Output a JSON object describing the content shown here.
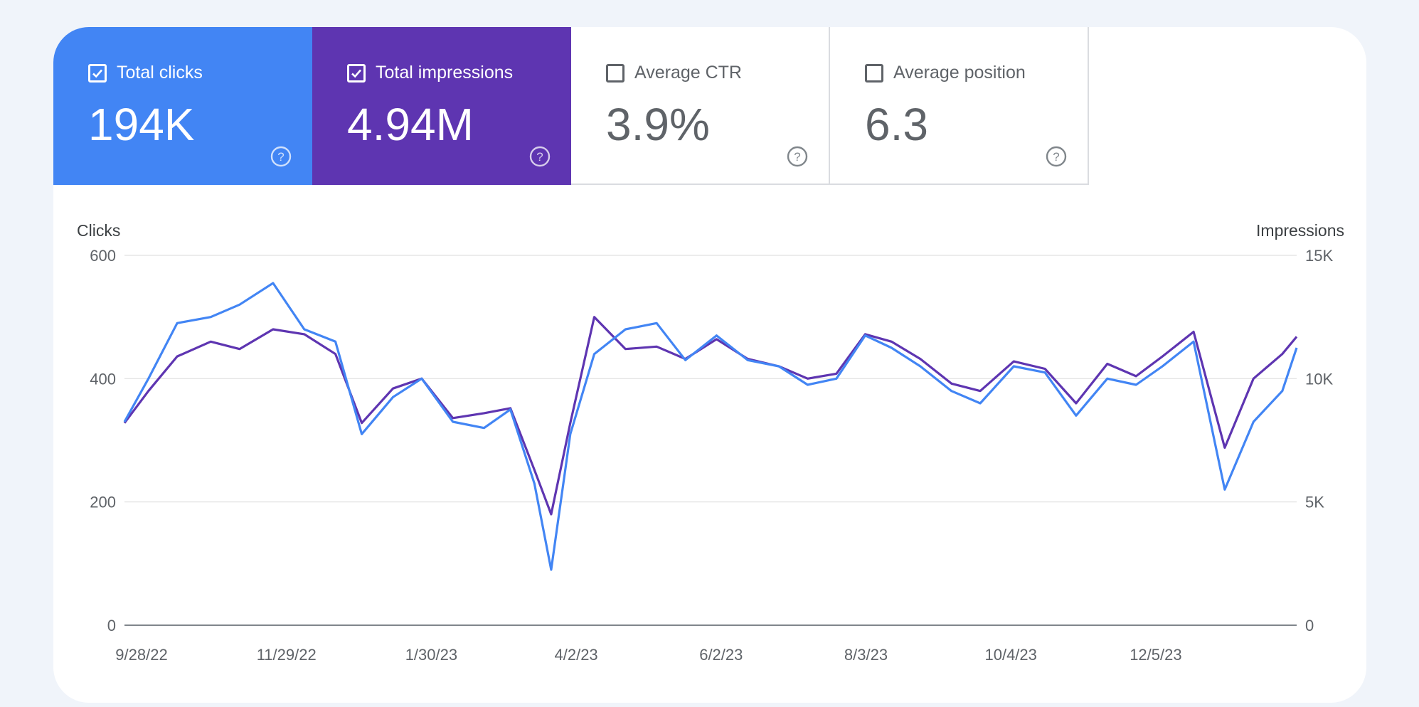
{
  "metrics": [
    {
      "label": "Total clicks",
      "value": "194K",
      "checked": true,
      "color": "#4285f4"
    },
    {
      "label": "Total impressions",
      "value": "4.94M",
      "checked": true,
      "color": "#5e35b1"
    },
    {
      "label": "Average CTR",
      "value": "3.9%",
      "checked": false,
      "color": "#ffffff"
    },
    {
      "label": "Average position",
      "value": "6.3",
      "checked": false,
      "color": "#ffffff"
    }
  ],
  "icons": {
    "checkbox": "checkbox-icon",
    "help": "help-circle-icon"
  },
  "chart_data": {
    "type": "line",
    "ylabel_left": "Clicks",
    "ylabel_right": "Impressions",
    "left_axis": {
      "min": 0,
      "max": 600,
      "ticks": [
        "0",
        "200",
        "400",
        "600"
      ]
    },
    "right_axis": {
      "min": 0,
      "max": 15000,
      "ticks": [
        "0",
        "5K",
        "10K",
        "15K"
      ]
    },
    "x_ticks": [
      "9/28/22",
      "11/29/22",
      "1/30/23",
      "4/2/23",
      "6/2/23",
      "8/3/23",
      "10/4/23",
      "12/5/23"
    ],
    "x_range": [
      "2022-09-28",
      "2024-01-30"
    ],
    "grid": true,
    "series": [
      {
        "name": "Clicks",
        "axis": "left",
        "color": "#4285f4",
        "x": [
          "2022-09-28",
          "2022-10-08",
          "2022-10-20",
          "2022-11-03",
          "2022-11-15",
          "2022-11-29",
          "2022-12-12",
          "2022-12-25",
          "2023-01-05",
          "2023-01-18",
          "2023-01-30",
          "2023-02-12",
          "2023-02-25",
          "2023-03-08",
          "2023-03-18",
          "2023-03-25",
          "2023-04-02",
          "2023-04-12",
          "2023-04-25",
          "2023-05-08",
          "2023-05-20",
          "2023-06-02",
          "2023-06-15",
          "2023-06-28",
          "2023-07-10",
          "2023-07-22",
          "2023-08-03",
          "2023-08-14",
          "2023-08-26",
          "2023-09-08",
          "2023-09-20",
          "2023-10-04",
          "2023-10-17",
          "2023-10-30",
          "2023-11-12",
          "2023-11-24",
          "2023-12-05",
          "2023-12-18",
          "2023-12-31",
          "2024-01-12",
          "2024-01-24",
          "2024-01-30"
        ],
        "y": [
          330,
          400,
          490,
          500,
          520,
          555,
          480,
          460,
          310,
          370,
          400,
          330,
          320,
          350,
          230,
          90,
          310,
          440,
          480,
          490,
          430,
          470,
          430,
          420,
          390,
          400,
          470,
          450,
          420,
          380,
          360,
          420,
          410,
          340,
          400,
          390,
          420,
          460,
          220,
          330,
          380,
          450
        ]
      },
      {
        "name": "Impressions",
        "axis": "right",
        "color": "#5e35b1",
        "x": [
          "2022-09-28",
          "2022-10-08",
          "2022-10-20",
          "2022-11-03",
          "2022-11-15",
          "2022-11-29",
          "2022-12-12",
          "2022-12-25",
          "2023-01-05",
          "2023-01-18",
          "2023-01-30",
          "2023-02-12",
          "2023-02-25",
          "2023-03-08",
          "2023-03-18",
          "2023-03-25",
          "2023-04-02",
          "2023-04-12",
          "2023-04-25",
          "2023-05-08",
          "2023-05-20",
          "2023-06-02",
          "2023-06-15",
          "2023-06-28",
          "2023-07-10",
          "2023-07-22",
          "2023-08-03",
          "2023-08-14",
          "2023-08-26",
          "2023-09-08",
          "2023-09-20",
          "2023-10-04",
          "2023-10-17",
          "2023-10-30",
          "2023-11-12",
          "2023-11-24",
          "2023-12-05",
          "2023-12-18",
          "2023-12-31",
          "2024-01-12",
          "2024-01-24",
          "2024-01-30"
        ],
        "y": [
          8200,
          9500,
          10900,
          11500,
          11200,
          12000,
          11800,
          11000,
          8200,
          9600,
          10000,
          8400,
          8600,
          8800,
          6300,
          4500,
          8200,
          12500,
          11200,
          11300,
          10800,
          11600,
          10800,
          10500,
          10000,
          10200,
          11800,
          11500,
          10800,
          9800,
          9500,
          10700,
          10400,
          9000,
          10600,
          10100,
          10900,
          11900,
          7200,
          10000,
          11000,
          11700
        ]
      }
    ]
  }
}
